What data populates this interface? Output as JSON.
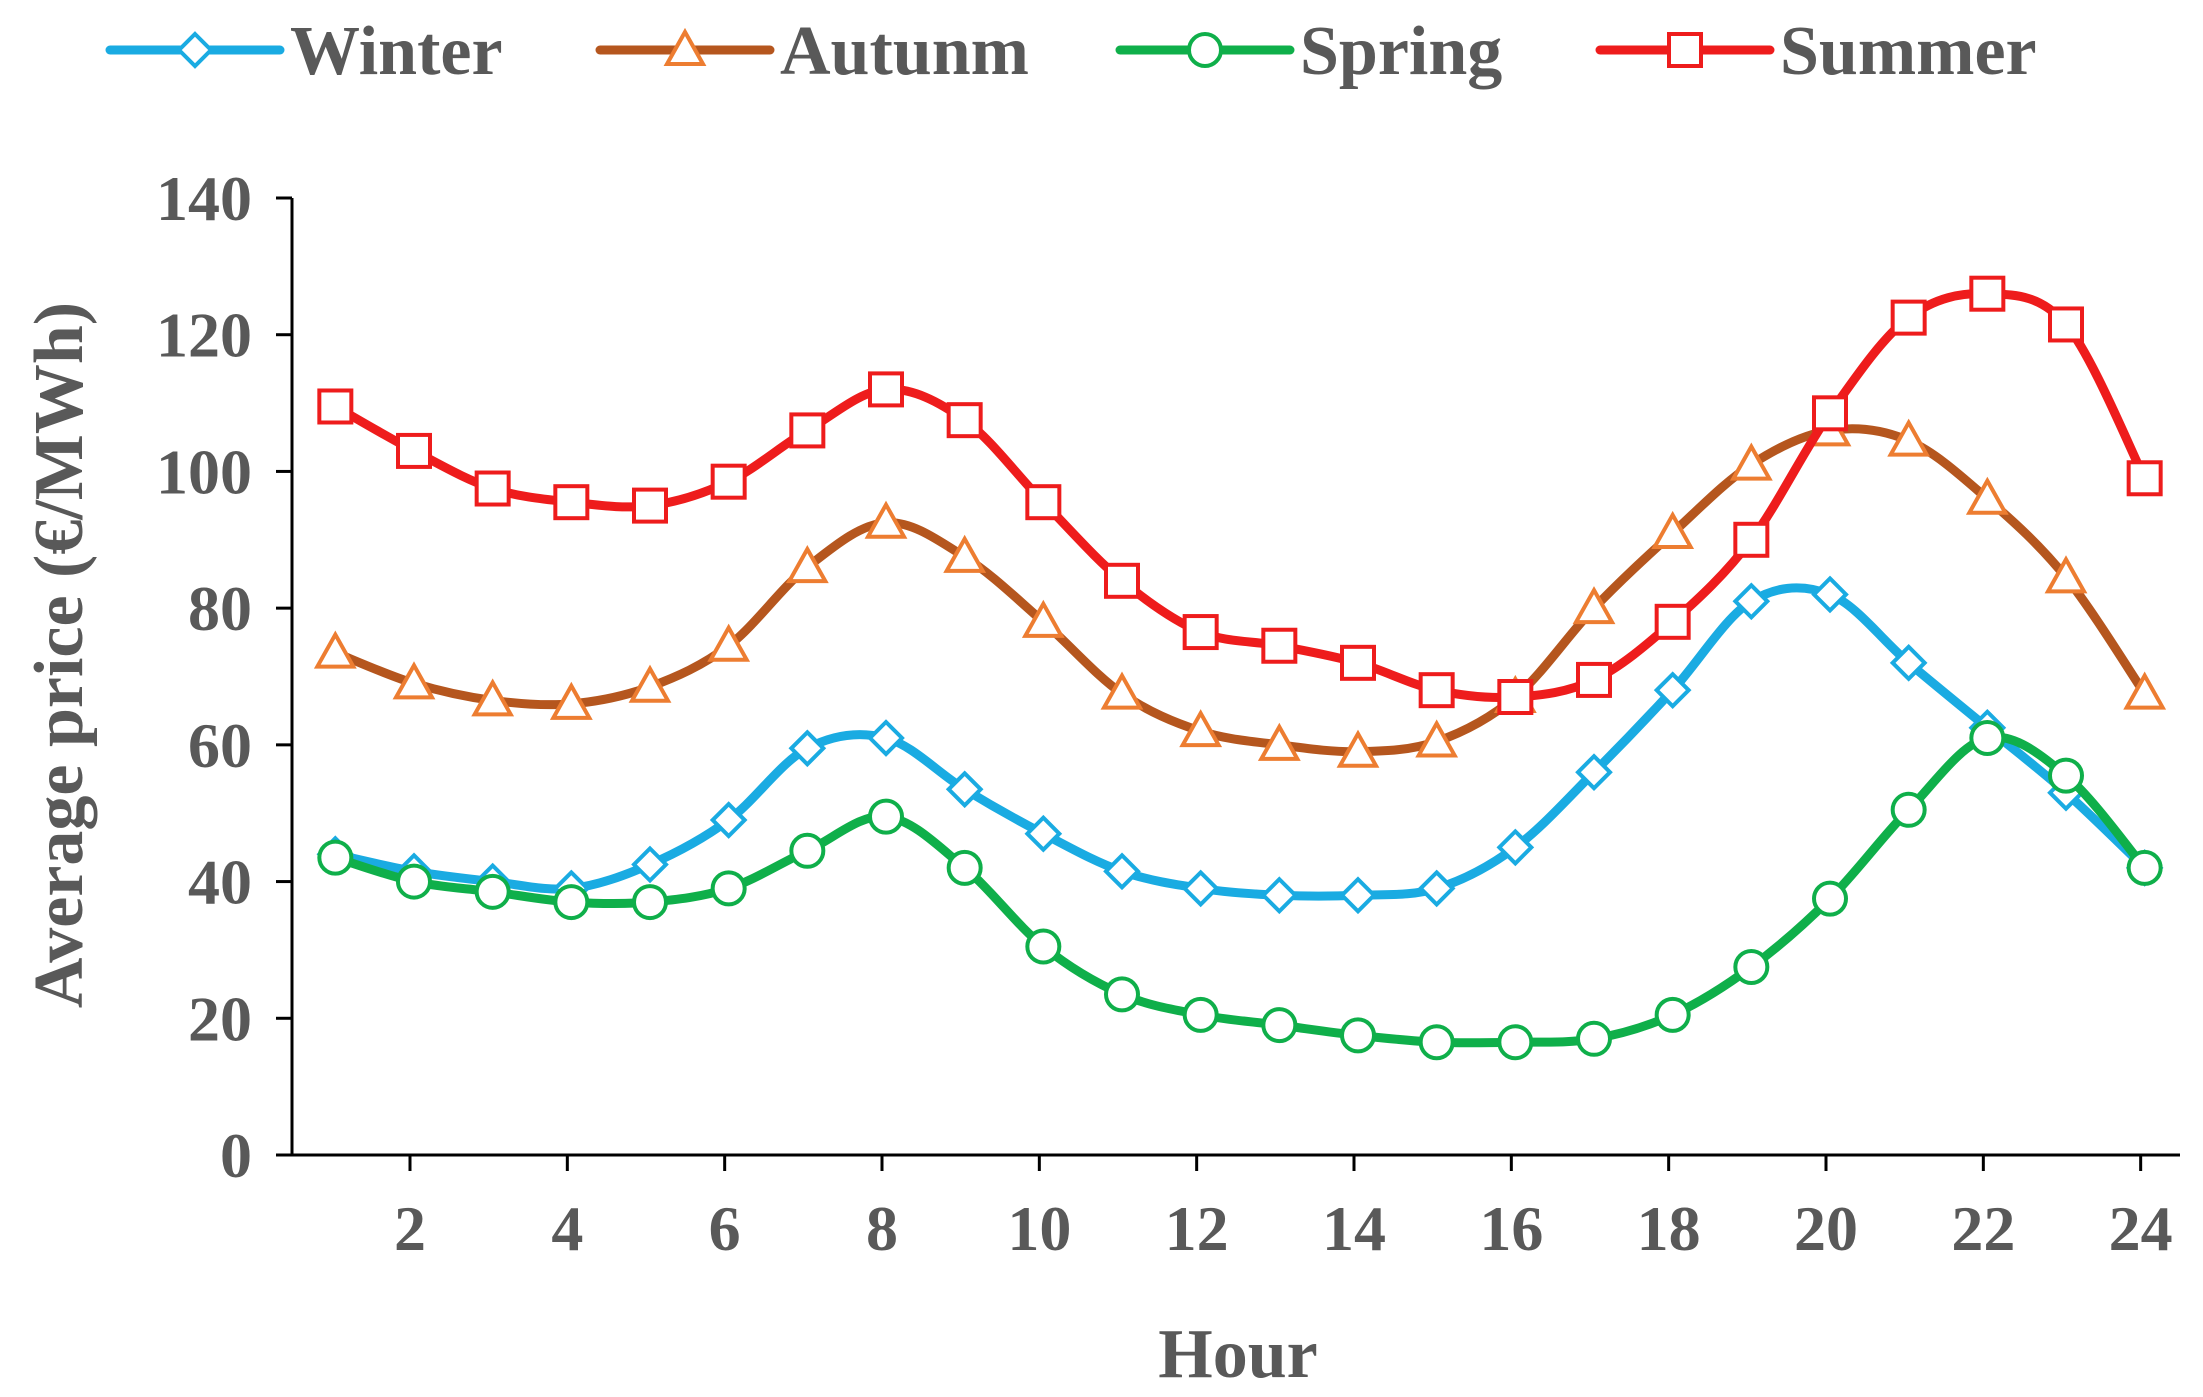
{
  "chart_data": {
    "type": "line",
    "title": "",
    "xlabel": "Hour",
    "ylabel": "Average price (€/MWh)",
    "xlim": [
      0,
      24
    ],
    "ylim": [
      0,
      140
    ],
    "x_ticks": [
      2,
      4,
      6,
      8,
      10,
      12,
      14,
      16,
      18,
      20,
      22,
      24
    ],
    "y_ticks": [
      0,
      20,
      40,
      60,
      80,
      100,
      120,
      140
    ],
    "grid": false,
    "legend_position": "top",
    "x": [
      1,
      2,
      3,
      4,
      5,
      6,
      7,
      8,
      9,
      10,
      11,
      12,
      13,
      14,
      15,
      16,
      17,
      18,
      19,
      20,
      21,
      22,
      23,
      24
    ],
    "series": [
      {
        "name": "Winter",
        "color": "#1AABE2",
        "marker": "diamond",
        "values": [
          44,
          41.5,
          40,
          39,
          42.5,
          49,
          59.5,
          61,
          53.5,
          47,
          41.5,
          39,
          38,
          38,
          39,
          45,
          56,
          68,
          81,
          82,
          72,
          62.5,
          53,
          42
        ]
      },
      {
        "name": "Autunm",
        "color": "#B5561E",
        "marker_color": "#ED7D31",
        "marker": "triangle",
        "values": [
          73.5,
          69,
          66.5,
          66,
          68.5,
          74.5,
          86,
          92.5,
          87.5,
          78,
          67.5,
          62,
          60,
          59,
          60.5,
          67,
          80,
          91,
          101,
          106,
          104.5,
          96,
          84.5,
          67.5
        ]
      },
      {
        "name": "Spring",
        "color": "#0FAF4A",
        "marker": "circle",
        "values": [
          43.5,
          40,
          38.5,
          37,
          37,
          39,
          44.5,
          49.5,
          42,
          30.5,
          23.5,
          20.5,
          19,
          17.5,
          16.5,
          16.5,
          17,
          20.5,
          27.5,
          37.5,
          50.5,
          61,
          55.5,
          42
        ]
      },
      {
        "name": "Summer",
        "color": "#EE1C1C",
        "marker": "square",
        "values": [
          109.5,
          103,
          97.5,
          95.5,
          95,
          98.5,
          106,
          112,
          107.5,
          95.5,
          84,
          76.5,
          74.5,
          72,
          68,
          67,
          69.5,
          78,
          90,
          108.5,
          122.5,
          126,
          121.5,
          99
        ]
      }
    ]
  }
}
